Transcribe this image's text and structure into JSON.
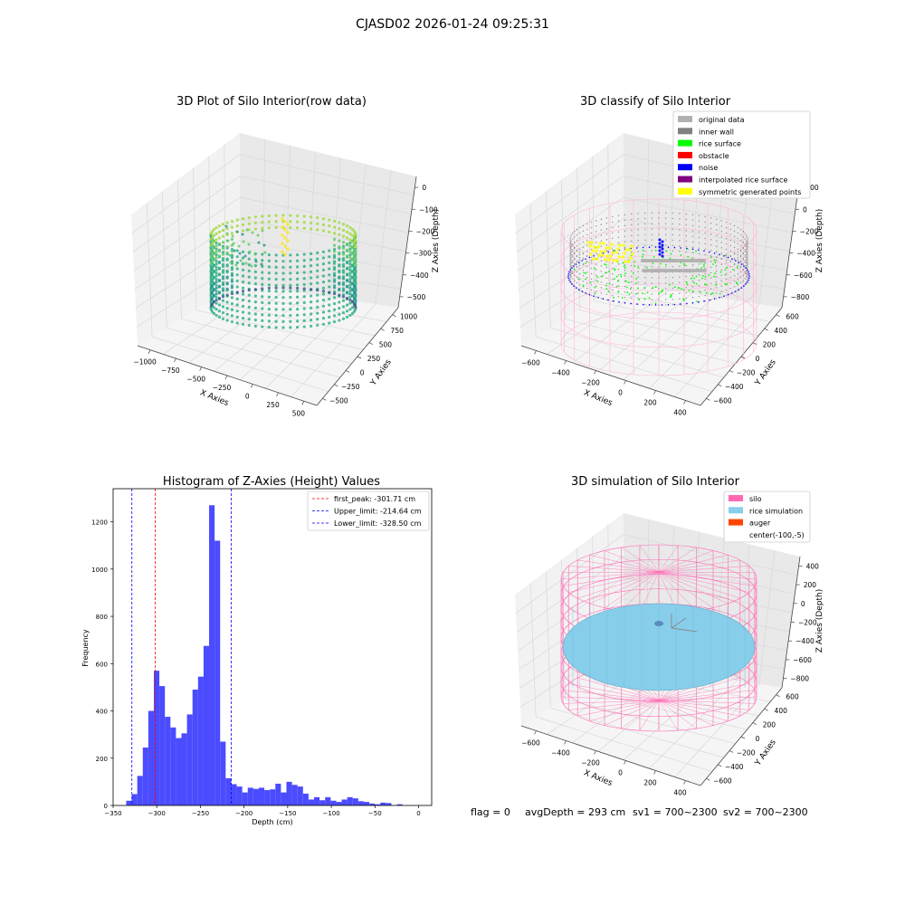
{
  "suptitle": "CJASD02 2026-01-24 09:25:31",
  "status": {
    "flag": "flag = 0",
    "avg_depth": "avgDepth = 293 cm",
    "sv1": "sv1 = 700~2300",
    "sv2": "sv2 = 700~2300"
  },
  "colors": {
    "hist_bar": "#4b4bff",
    "peak_line": "#ff0000",
    "limit_line": "#0000ff",
    "silo": "#ff69b4",
    "rice_sim": "#87ceeb",
    "auger": "#ff4500"
  },
  "chart_data": [
    {
      "type": "scatter",
      "projection": "3d",
      "title": "3D Plot of Silo Interior(row data)",
      "xlabel": "X Axies",
      "ylabel": "Y Axies",
      "zlabel": "Z Axies (Depth)",
      "xticks": [
        "−1000",
        "−750",
        "−500",
        "−250",
        "0",
        "250",
        "500"
      ],
      "yticks": [
        "−500",
        "−250",
        "0",
        "250",
        "500",
        "750",
        "1000"
      ],
      "zticks": [
        "0",
        "−100",
        "−200",
        "−300",
        "−400",
        "−500"
      ],
      "xlim": [
        -1100,
        600
      ],
      "ylim": [
        -600,
        1100
      ],
      "zlim": [
        -550,
        20
      ],
      "colormap": "viridis"
    },
    {
      "type": "scatter",
      "projection": "3d",
      "title": "3D classify of Silo Interior",
      "xlabel": "X Axies",
      "ylabel": "Y Axies",
      "zlabel": "Z Axies (Depth)",
      "xticks": [
        "−600",
        "−400",
        "−200",
        "0",
        "200",
        "400"
      ],
      "yticks": [
        "−600",
        "−400",
        "−200",
        "0",
        "200",
        "400",
        "600"
      ],
      "zticks": [
        "200",
        "0",
        "−200",
        "−400",
        "−600",
        "−800"
      ],
      "legend_position": "top-right",
      "legend": [
        {
          "label": "original data",
          "color": "#b0b0b0"
        },
        {
          "label": "inner wall",
          "color": "#808080"
        },
        {
          "label": "rice surface",
          "color": "#00ff00"
        },
        {
          "label": "obstacle",
          "color": "#ff0000"
        },
        {
          "label": "noise",
          "color": "#0000ff"
        },
        {
          "label": "interpolated rice surface",
          "color": "#800080"
        },
        {
          "label": "symmetric generated points",
          "color": "#ffff00"
        }
      ]
    },
    {
      "type": "bar",
      "title": "Histogram of Z-Axies (Height) Values",
      "xlabel": "Depth (cm)",
      "ylabel": "Frequency",
      "xlim": [
        -350,
        15
      ],
      "ylim": [
        0,
        1340
      ],
      "xticks": [
        -350,
        -300,
        -250,
        -200,
        -150,
        -100,
        -50,
        0
      ],
      "yticks": [
        0,
        200,
        400,
        600,
        800,
        1000,
        1200
      ],
      "bin_start": -335,
      "bin_width": 6.33,
      "values": [
        20,
        48,
        125,
        245,
        400,
        570,
        505,
        375,
        330,
        285,
        305,
        385,
        490,
        545,
        675,
        1270,
        1120,
        270,
        115,
        90,
        80,
        55,
        75,
        70,
        75,
        65,
        68,
        92,
        55,
        100,
        87,
        80,
        50,
        25,
        35,
        22,
        35,
        20,
        15,
        25,
        35,
        30,
        18,
        15,
        8,
        5,
        12,
        10,
        0,
        5
      ],
      "vlines": [
        {
          "x": -301.71,
          "label": "first_peak: -301.71 cm",
          "color": "#ff0000"
        },
        {
          "x": -214.64,
          "label": "Upper_limit: -214.64 cm",
          "color": "#0000ff"
        },
        {
          "x": -328.5,
          "label": "Lower_limit: -328.50 cm",
          "color": "#0000ff"
        }
      ],
      "legend_position": "top-right"
    },
    {
      "type": "scatter",
      "projection": "3d",
      "title": "3D simulation of Silo Interior",
      "xlabel": "X Axies",
      "ylabel": "Y Axies",
      "zlabel": "Z Axies (Depth)",
      "xticks": [
        "−600",
        "−400",
        "−200",
        "0",
        "200",
        "400"
      ],
      "yticks": [
        "−600",
        "−400",
        "−200",
        "0",
        "200",
        "400",
        "600"
      ],
      "zticks": [
        "400",
        "200",
        "0",
        "−200",
        "−400",
        "−600",
        "−800"
      ],
      "legend_position": "top-right",
      "legend": [
        {
          "label": "silo",
          "color": "#ff69b4"
        },
        {
          "label": "rice simulation",
          "color": "#87ceeb"
        },
        {
          "label": "auger",
          "color": "#ff4500"
        },
        {
          "label": "center(-100,-5)",
          "color": ""
        }
      ]
    }
  ]
}
